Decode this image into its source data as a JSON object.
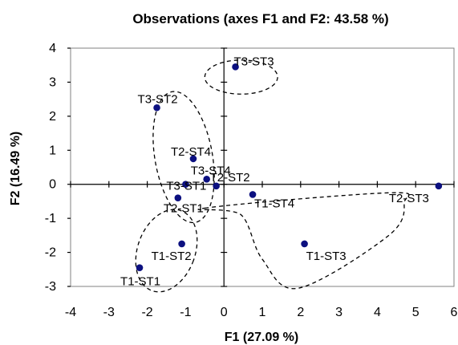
{
  "chart_data": {
    "type": "scatter",
    "title": "Observations (axes F1 and F2: 43.58 %)",
    "xlabel": "F1 (27.09 %)",
    "ylabel": "F2 (16.49 %)",
    "xlim": [
      -4,
      6
    ],
    "ylim": [
      -3,
      4
    ],
    "xticks": [
      "-4",
      "-3",
      "-2",
      "-1",
      "0",
      "1",
      "2",
      "3",
      "4",
      "5",
      "6"
    ],
    "yticks": [
      "-3",
      "-2",
      "-1",
      "0",
      "1",
      "2",
      "3",
      "4"
    ],
    "grid": false,
    "legend": "none",
    "marker_color": "#0c1080",
    "points": [
      {
        "label": "T3-ST3",
        "x": 0.3,
        "y": 3.45
      },
      {
        "label": "T3-ST2",
        "x": -1.75,
        "y": 2.25
      },
      {
        "label": "T2-ST4",
        "x": -0.8,
        "y": 0.75
      },
      {
        "label": "T3-ST4",
        "x": -0.45,
        "y": 0.15
      },
      {
        "label": "T2-ST2",
        "x": -0.2,
        "y": -0.05
      },
      {
        "label": "T3-ST1",
        "x": -1.0,
        "y": 0.0
      },
      {
        "label": "T2-ST1",
        "x": -1.2,
        "y": -0.4
      },
      {
        "label": "T1-ST4",
        "x": 0.75,
        "y": -0.3
      },
      {
        "label": "T2-ST3",
        "x": 5.6,
        "y": -0.05
      },
      {
        "label": "T1-ST2",
        "x": -1.1,
        "y": -1.75
      },
      {
        "label": "T1-ST1",
        "x": -2.2,
        "y": -2.45
      },
      {
        "label": "T1-ST3",
        "x": 2.1,
        "y": -1.75
      }
    ],
    "groups": [
      {
        "members": [
          "T3-ST3"
        ],
        "shape": "ellipse",
        "cx": 0.45,
        "cy": 3.15,
        "rx": 0.95,
        "ry": 0.5,
        "rotate": 0
      },
      {
        "members": [
          "T3-ST2",
          "T2-ST4",
          "T3-ST4",
          "T2-ST2",
          "T3-ST1",
          "T2-ST1"
        ],
        "shape": "ellipse",
        "cx": -1.05,
        "cy": 0.8,
        "rx": 0.75,
        "ry": 1.95,
        "rotate": -10
      },
      {
        "members": [
          "T1-ST4",
          "T2-ST3",
          "T1-ST3"
        ],
        "shape": "polygon",
        "vertices": [
          [
            -0.5,
            -0.7
          ],
          [
            4.3,
            -0.25
          ],
          [
            4.7,
            -0.55
          ],
          [
            4.3,
            -1.5
          ],
          [
            1.95,
            -3.05
          ],
          [
            1.0,
            -2.2
          ],
          [
            0.45,
            -0.9
          ]
        ]
      },
      {
        "members": [
          "T1-ST2",
          "T1-ST1"
        ],
        "shape": "ellipse",
        "cx": -1.5,
        "cy": -1.95,
        "rx": 0.75,
        "ry": 1.25,
        "rotate": 20
      }
    ]
  }
}
